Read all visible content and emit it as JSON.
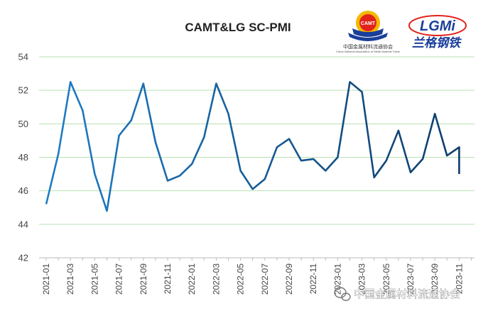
{
  "chart_data": {
    "type": "line",
    "title": "CAMT&LG SC-PMI",
    "xlabel": "",
    "ylabel": "",
    "ylim": [
      42,
      54
    ],
    "yticks": [
      42,
      44,
      46,
      48,
      50,
      52,
      54
    ],
    "grid": true,
    "legend": "none",
    "x": [
      "2021-01",
      "2021-02",
      "2021-03",
      "2021-04",
      "2021-05",
      "2021-06",
      "2021-07",
      "2021-08",
      "2021-09",
      "2021-10",
      "2021-11",
      "2021-12",
      "2022-01",
      "2022-02",
      "2022-03",
      "2022-04",
      "2022-05",
      "2022-06",
      "2022-07",
      "2022-08",
      "2022-09",
      "2022-10",
      "2022-11",
      "2022-12",
      "2023-01",
      "2023-02",
      "2023-03",
      "2023-04",
      "2023-05",
      "2023-06",
      "2023-07",
      "2023-08",
      "2023-09",
      "2023-10",
      "2023-11",
      "2023-11b"
    ],
    "xtick_labels": [
      "2021-01",
      "2021-03",
      "2021-05",
      "2021-07",
      "2021-09",
      "2021-11",
      "2022-01",
      "2022-03",
      "2022-05",
      "2022-07",
      "2022-09",
      "2022-11",
      "2023-01",
      "2023-03",
      "2023-05",
      "2023-07",
      "2023-09",
      "2023-11"
    ],
    "values": [
      45.2,
      48.2,
      52.5,
      50.8,
      47.0,
      44.8,
      49.3,
      50.2,
      52.4,
      48.9,
      46.6,
      46.9,
      47.6,
      49.2,
      52.4,
      50.6,
      47.2,
      46.1,
      46.7,
      48.6,
      49.1,
      47.8,
      47.9,
      47.2,
      48.0,
      52.5,
      51.9,
      46.8,
      47.8,
      49.6,
      47.1,
      47.9,
      50.6,
      48.1,
      48.6,
      47.0
    ],
    "colors": {
      "line_start": "#1f7dc6",
      "line_end": "#0d3c6b",
      "grid": "#b9e0b3",
      "axis": "#bbbbbb"
    }
  },
  "logos": {
    "camt": {
      "badge": "CAMT",
      "caption": "中国金属材料流通协会",
      "caption_en": "China National Association of Metal Material Trade"
    },
    "lgmi": {
      "text": "LGMi",
      "caption": "兰格钢铁"
    }
  },
  "watermark": {
    "text": "中国金属材料流通协会",
    "icon": "wechat-icon"
  }
}
